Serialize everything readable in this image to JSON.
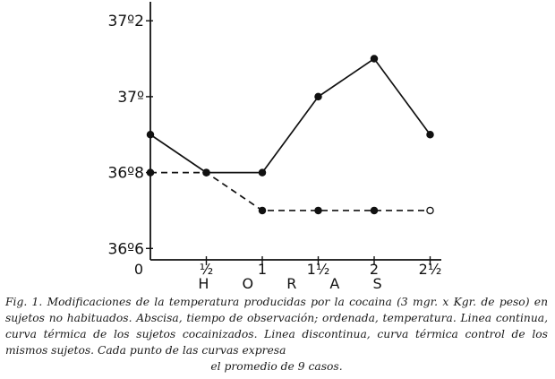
{
  "chart_data": {
    "type": "line",
    "x": [
      0,
      0.5,
      1,
      1.5,
      2,
      2.5
    ],
    "x_tick_labels": [
      "0",
      "½",
      "1",
      "1½",
      "2",
      "2½"
    ],
    "y_tick_labels": [
      "37º2",
      "37º",
      "36º8",
      "36º6"
    ],
    "y_ticks": [
      37.2,
      37.0,
      36.8,
      36.6
    ],
    "xlabel": "H O R A S",
    "ylabel": "",
    "ylim": [
      36.57,
      37.25
    ],
    "xlim": [
      0,
      2.6
    ],
    "grid": false,
    "series": [
      {
        "style": "solid",
        "marker": "filled",
        "values": [
          36.9,
          36.8,
          36.8,
          37.0,
          37.1,
          36.9
        ]
      },
      {
        "style": "dashed",
        "marker": "mixed",
        "values": [
          36.8,
          36.8,
          36.7,
          36.7,
          36.7,
          36.7
        ]
      }
    ]
  },
  "caption": {
    "main": "Fig. 1. Modificaciones de la temperatura producidas por la cocaina (3 mgr. x Kgr. de peso) en sujetos no habituados. Abscisa, tiempo de observación; ordenada, temperatura. Linea continua, curva térmica de los sujetos cocainizados. Linea discontinua, curva térmica control de los mismos sujetos. Cada punto de las curvas expresa",
    "last": "el promedio de 9 casos."
  }
}
